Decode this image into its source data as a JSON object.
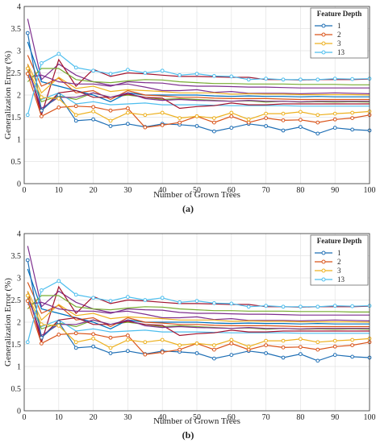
{
  "panels": [
    {
      "panel_label": "(a)",
      "legend": {
        "title": "Feature Depth",
        "entries": [
          "1",
          "2",
          "3",
          "13"
        ]
      }
    },
    {
      "panel_label": "(b)",
      "legend": {
        "title": "Feature Depth",
        "entries": [
          "1",
          "2",
          "3",
          "13"
        ]
      }
    }
  ],
  "chart_data": [
    {
      "type": "line",
      "xlabel": "Number of Grown Trees",
      "ylabel": "Generalization Error (%)",
      "xlim": [
        0,
        100
      ],
      "ylim": [
        0,
        4
      ],
      "xticks": [
        "0",
        "10",
        "20",
        "30",
        "40",
        "50",
        "60",
        "70",
        "80",
        "90",
        "100"
      ],
      "yticks": [
        "0",
        "0.5",
        "1",
        "1.5",
        "2",
        "2.5",
        "3",
        "3.5",
        "4"
      ],
      "grid": true,
      "legend_position": "top-right",
      "x": [
        1,
        5,
        10,
        15,
        20,
        25,
        30,
        35,
        40,
        45,
        50,
        55,
        60,
        65,
        70,
        75,
        80,
        85,
        90,
        95,
        100
      ],
      "series": [
        {
          "name": "1",
          "color": "#1f6fb5",
          "marker": "circle",
          "values": [
            3.4,
            1.65,
            2.0,
            1.42,
            1.45,
            1.3,
            1.35,
            1.28,
            1.35,
            1.33,
            1.3,
            1.18,
            1.26,
            1.35,
            1.3,
            1.2,
            1.28,
            1.13,
            1.26,
            1.22,
            1.2
          ]
        },
        {
          "name": "2",
          "color": "#d95319",
          "marker": "circle",
          "values": [
            2.48,
            1.52,
            1.72,
            1.75,
            1.73,
            1.65,
            1.7,
            1.27,
            1.32,
            1.38,
            1.52,
            1.38,
            1.52,
            1.38,
            1.48,
            1.43,
            1.44,
            1.38,
            1.45,
            1.48,
            1.55
          ]
        },
        {
          "name": "3",
          "color": "#edb120",
          "marker": "circle",
          "values": [
            2.6,
            1.95,
            1.92,
            1.55,
            1.63,
            1.42,
            1.6,
            1.55,
            1.6,
            1.48,
            1.52,
            1.48,
            1.6,
            1.45,
            1.58,
            1.58,
            1.62,
            1.55,
            1.58,
            1.6,
            1.63
          ]
        },
        {
          "name": "13",
          "color": "#4dbeee",
          "marker": "circle",
          "values": [
            1.55,
            2.72,
            2.93,
            2.62,
            2.55,
            2.48,
            2.57,
            2.5,
            2.55,
            2.45,
            2.48,
            2.43,
            2.42,
            2.35,
            2.37,
            2.35,
            2.35,
            2.35,
            2.37,
            2.36,
            2.37
          ]
        },
        {
          "color": "#7e2f8e",
          "values": [
            3.72,
            2.35,
            2.7,
            2.45,
            2.3,
            2.22,
            2.25,
            2.18,
            2.1,
            2.1,
            2.12,
            2.06,
            2.08,
            2.04,
            2.04,
            2.04,
            2.03,
            2.04,
            2.05,
            2.04,
            2.03
          ]
        },
        {
          "color": "#77ac30",
          "values": [
            2.55,
            1.85,
            1.98,
            1.9,
            2.05,
            1.95,
            2.0,
            1.95,
            1.9,
            1.92,
            1.9,
            1.88,
            1.86,
            1.87,
            1.84,
            1.86,
            1.84,
            1.85,
            1.84,
            1.85,
            1.84
          ]
        },
        {
          "color": "#a2142f",
          "values": [
            2.7,
            1.55,
            2.8,
            2.2,
            2.58,
            2.42,
            2.5,
            2.48,
            2.45,
            2.42,
            2.42,
            2.41,
            2.4,
            2.4,
            2.35,
            2.35,
            2.34,
            2.35,
            2.35,
            2.35,
            2.36
          ]
        },
        {
          "color": "#0072bd",
          "values": [
            3.2,
            2.3,
            2.2,
            2.1,
            2.0,
            1.85,
            2.05,
            2.0,
            2.0,
            2.0,
            2.0,
            1.98,
            1.97,
            1.98,
            1.97,
            1.97,
            1.96,
            1.97,
            1.96,
            1.96,
            1.96
          ]
        },
        {
          "color": "#d95319",
          "values": [
            2.9,
            2.2,
            2.38,
            2.05,
            2.1,
            1.9,
            2.1,
            2.0,
            1.98,
            1.95,
            1.95,
            1.93,
            1.92,
            1.92,
            1.92,
            1.91,
            1.9,
            1.9,
            1.9,
            1.9,
            1.9
          ]
        },
        {
          "color": "#edb120",
          "values": [
            2.7,
            2.05,
            2.4,
            2.15,
            2.2,
            2.08,
            2.12,
            2.1,
            2.08,
            2.05,
            2.05,
            2.05,
            2.02,
            2.03,
            2.02,
            2.02,
            2.01,
            2.01,
            2.01,
            2.01,
            2.0
          ]
        },
        {
          "color": "#7e2f8e",
          "values": [
            2.4,
            2.45,
            2.3,
            2.25,
            2.25,
            2.2,
            2.3,
            2.28,
            2.27,
            2.22,
            2.2,
            2.2,
            2.19,
            2.18,
            2.18,
            2.17,
            2.16,
            2.16,
            2.16,
            2.16,
            2.16
          ]
        },
        {
          "color": "#77ac30",
          "values": [
            2.3,
            2.6,
            2.6,
            2.35,
            2.3,
            2.28,
            2.32,
            2.35,
            2.34,
            2.3,
            2.28,
            2.26,
            2.26,
            2.25,
            2.25,
            2.25,
            2.24,
            2.24,
            2.24,
            2.23,
            2.23
          ]
        },
        {
          "color": "#4dbeee",
          "values": [
            2.5,
            1.9,
            2.05,
            1.8,
            1.85,
            1.78,
            1.8,
            1.82,
            1.78,
            1.78,
            1.78,
            1.77,
            1.76,
            1.76,
            1.76,
            1.76,
            1.75,
            1.75,
            1.75,
            1.75,
            1.75
          ]
        },
        {
          "color": "#a2142f",
          "values": [
            2.62,
            1.65,
            2.05,
            2.1,
            1.95,
            1.95,
            2.02,
            1.95,
            1.93,
            1.7,
            1.74,
            1.76,
            1.82,
            1.78,
            1.78,
            1.8,
            1.8,
            1.8,
            1.8,
            1.8,
            1.8
          ]
        },
        {
          "color": "#7e2f8e",
          "values": [
            2.6,
            1.7,
            1.95,
            1.95,
            2.05,
            1.95,
            2.05,
            1.92,
            1.88,
            1.9,
            1.88,
            1.87,
            1.86,
            1.88,
            1.86,
            1.86,
            1.85,
            1.86,
            1.86,
            1.86,
            1.86
          ]
        }
      ]
    },
    {
      "type": "line",
      "xlabel": "Number of Grown Trees",
      "ylabel": "Generalization Error (%)",
      "xlim": [
        0,
        100
      ],
      "ylim": [
        0,
        4
      ],
      "xticks": [
        "0",
        "10",
        "20",
        "30",
        "40",
        "50",
        "60",
        "70",
        "80",
        "90",
        "100"
      ],
      "yticks": [
        "0",
        "0.5",
        "1",
        "1.5",
        "2",
        "2.5",
        "3",
        "3.5",
        "4"
      ],
      "grid": true,
      "legend_position": "top-right",
      "x": [
        1,
        5,
        10,
        15,
        20,
        25,
        30,
        35,
        40,
        45,
        50,
        55,
        60,
        65,
        70,
        75,
        80,
        85,
        90,
        95,
        100
      ],
      "series": [
        {
          "name": "1",
          "color": "#1f6fb5",
          "marker": "circle",
          "values": [
            3.4,
            1.65,
            2.0,
            1.42,
            1.45,
            1.3,
            1.35,
            1.28,
            1.35,
            1.33,
            1.3,
            1.18,
            1.26,
            1.35,
            1.3,
            1.2,
            1.28,
            1.13,
            1.26,
            1.22,
            1.2
          ]
        },
        {
          "name": "2",
          "color": "#d95319",
          "marker": "circle",
          "values": [
            2.48,
            1.52,
            1.72,
            1.75,
            1.73,
            1.65,
            1.7,
            1.27,
            1.32,
            1.38,
            1.52,
            1.38,
            1.52,
            1.38,
            1.48,
            1.43,
            1.44,
            1.38,
            1.45,
            1.48,
            1.55
          ]
        },
        {
          "name": "3",
          "color": "#edb120",
          "marker": "circle",
          "values": [
            2.6,
            1.95,
            1.92,
            1.55,
            1.63,
            1.42,
            1.6,
            1.55,
            1.6,
            1.48,
            1.52,
            1.48,
            1.6,
            1.45,
            1.58,
            1.58,
            1.62,
            1.55,
            1.58,
            1.6,
            1.63
          ]
        },
        {
          "name": "13",
          "color": "#4dbeee",
          "marker": "circle",
          "values": [
            1.55,
            2.72,
            2.93,
            2.62,
            2.55,
            2.48,
            2.57,
            2.5,
            2.55,
            2.45,
            2.48,
            2.43,
            2.42,
            2.35,
            2.37,
            2.35,
            2.35,
            2.35,
            2.37,
            2.36,
            2.37
          ]
        },
        {
          "color": "#7e2f8e",
          "values": [
            3.72,
            2.35,
            2.7,
            2.45,
            2.3,
            2.22,
            2.25,
            2.18,
            2.1,
            2.1,
            2.12,
            2.06,
            2.08,
            2.04,
            2.04,
            2.04,
            2.03,
            2.04,
            2.05,
            2.04,
            2.03
          ]
        },
        {
          "color": "#77ac30",
          "values": [
            2.55,
            1.85,
            1.98,
            1.9,
            2.05,
            1.95,
            2.0,
            1.95,
            1.9,
            1.92,
            1.9,
            1.88,
            1.86,
            1.87,
            1.84,
            1.86,
            1.84,
            1.85,
            1.84,
            1.85,
            1.84
          ]
        },
        {
          "color": "#a2142f",
          "values": [
            2.7,
            1.55,
            2.8,
            2.2,
            2.58,
            2.42,
            2.5,
            2.48,
            2.45,
            2.42,
            2.42,
            2.41,
            2.4,
            2.4,
            2.35,
            2.35,
            2.34,
            2.35,
            2.35,
            2.35,
            2.36
          ]
        },
        {
          "color": "#0072bd",
          "values": [
            3.2,
            2.3,
            2.2,
            2.1,
            2.0,
            1.85,
            2.05,
            2.0,
            2.0,
            2.0,
            2.0,
            1.98,
            1.97,
            1.98,
            1.97,
            1.97,
            1.96,
            1.97,
            1.96,
            1.96,
            1.96
          ]
        },
        {
          "color": "#d95319",
          "values": [
            2.9,
            2.2,
            2.38,
            2.05,
            2.1,
            1.9,
            2.1,
            2.0,
            1.98,
            1.95,
            1.95,
            1.93,
            1.92,
            1.92,
            1.92,
            1.91,
            1.9,
            1.9,
            1.9,
            1.9,
            1.9
          ]
        },
        {
          "color": "#edb120",
          "values": [
            2.7,
            2.05,
            2.4,
            2.15,
            2.2,
            2.08,
            2.12,
            2.1,
            2.08,
            2.05,
            2.05,
            2.05,
            2.02,
            2.03,
            2.02,
            2.02,
            2.01,
            2.01,
            2.01,
            2.01,
            2.0
          ]
        },
        {
          "color": "#7e2f8e",
          "values": [
            2.4,
            2.45,
            2.3,
            2.25,
            2.25,
            2.2,
            2.3,
            2.28,
            2.27,
            2.22,
            2.2,
            2.2,
            2.19,
            2.18,
            2.18,
            2.17,
            2.16,
            2.16,
            2.16,
            2.16,
            2.16
          ]
        },
        {
          "color": "#77ac30",
          "values": [
            2.3,
            2.6,
            2.6,
            2.35,
            2.3,
            2.28,
            2.32,
            2.35,
            2.34,
            2.3,
            2.28,
            2.26,
            2.26,
            2.25,
            2.25,
            2.25,
            2.24,
            2.24,
            2.24,
            2.23,
            2.23
          ]
        },
        {
          "color": "#4dbeee",
          "values": [
            2.5,
            1.9,
            2.05,
            1.8,
            1.85,
            1.78,
            1.8,
            1.82,
            1.78,
            1.78,
            1.78,
            1.77,
            1.76,
            1.76,
            1.76,
            1.76,
            1.75,
            1.75,
            1.75,
            1.75,
            1.75
          ]
        },
        {
          "color": "#a2142f",
          "values": [
            2.62,
            1.65,
            2.05,
            2.1,
            1.95,
            1.95,
            2.02,
            1.95,
            1.93,
            1.7,
            1.74,
            1.76,
            1.82,
            1.78,
            1.78,
            1.8,
            1.8,
            1.8,
            1.8,
            1.8,
            1.8
          ]
        },
        {
          "color": "#7e2f8e",
          "values": [
            2.6,
            1.7,
            1.95,
            1.95,
            2.05,
            1.95,
            2.05,
            1.92,
            1.88,
            1.9,
            1.88,
            1.87,
            1.86,
            1.88,
            1.86,
            1.86,
            1.85,
            1.86,
            1.86,
            1.86,
            1.86
          ]
        }
      ]
    }
  ]
}
